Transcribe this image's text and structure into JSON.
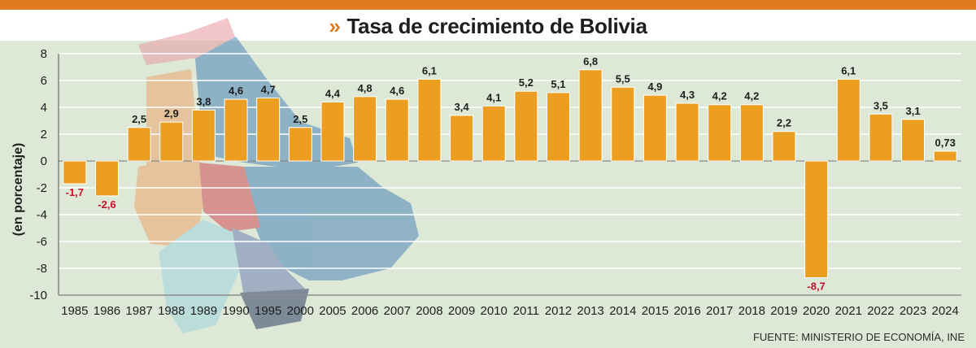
{
  "title": "Tasa de crecimiento de Bolivia",
  "title_icon": "double-chevron-icon",
  "source": "FUENTE: MINISTERIO DE ECONOMÍA, INE",
  "colors": {
    "accent": "#e07b22",
    "bar": "#eb9e1f",
    "background": "#dde9d6",
    "negative_label": "#c8102e",
    "positive_label": "#1e1e1e"
  },
  "chart_data": {
    "type": "bar",
    "title": "Tasa de crecimiento de Bolivia",
    "xlabel": "",
    "ylabel": "(en porcentaje)",
    "ylim": [
      -10,
      8
    ],
    "yticks": [
      8,
      6,
      4,
      2,
      0,
      -2,
      -4,
      -6,
      -8,
      -10
    ],
    "grid": true,
    "categories": [
      "1985",
      "1986",
      "1987",
      "1988",
      "1989",
      "1990",
      "1995",
      "2000",
      "2005",
      "2006",
      "2007",
      "2008",
      "2009",
      "2010",
      "2011",
      "2012",
      "2013",
      "2014",
      "2015",
      "2016",
      "2017",
      "2018",
      "2019",
      "2020",
      "2021",
      "2022",
      "2023",
      "2024"
    ],
    "values": [
      -1.7,
      -2.6,
      2.5,
      2.9,
      3.8,
      4.6,
      4.7,
      2.5,
      4.4,
      4.8,
      4.6,
      6.1,
      3.4,
      4.1,
      5.2,
      5.1,
      6.8,
      5.5,
      4.9,
      4.3,
      4.2,
      4.2,
      2.2,
      -8.7,
      6.1,
      3.5,
      3.1,
      0.73
    ],
    "labels": [
      "-1,7",
      "-2,6",
      "2,5",
      "2,9",
      "3,8",
      "4,6",
      "4,7",
      "2,5",
      "4,4",
      "4,8",
      "4,6",
      "6,1",
      "3,4",
      "4,1",
      "5,2",
      "5,1",
      "6,8",
      "5,5",
      "4,9",
      "4,3",
      "4,2",
      "4,2",
      "2,2",
      "-8,7",
      "6,1",
      "3,5",
      "3,1",
      "0,73"
    ]
  }
}
